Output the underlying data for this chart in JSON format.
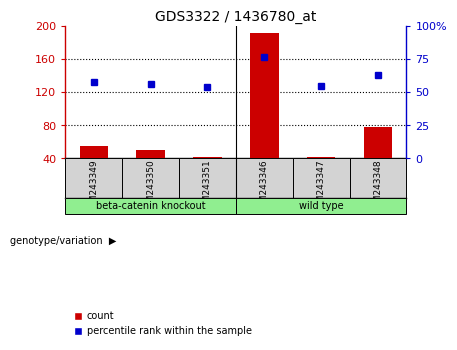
{
  "title": "GDS3322 / 1436780_at",
  "samples": [
    "GSM243349",
    "GSM243350",
    "GSM243351",
    "GSM243346",
    "GSM243347",
    "GSM243348"
  ],
  "counts": [
    55,
    50,
    42,
    192,
    42,
    78
  ],
  "percentile_ranks": [
    58,
    56,
    54,
    77,
    55,
    63
  ],
  "left_ylim": [
    40,
    200
  ],
  "right_ylim": [
    0,
    100
  ],
  "left_yticks": [
    40,
    80,
    120,
    160,
    200
  ],
  "right_yticks": [
    0,
    25,
    50,
    75,
    100
  ],
  "bar_color": "#cc0000",
  "dot_color": "#0000cc",
  "groups": [
    {
      "label": "beta-catenin knockout",
      "start": 0,
      "end": 3,
      "color": "#90ee90"
    },
    {
      "label": "wild type",
      "start": 3,
      "end": 6,
      "color": "#90ee90"
    }
  ],
  "group_label_prefix": "genotype/variation",
  "legend_count_label": "count",
  "legend_percentile_label": "percentile rank within the sample",
  "sample_box_color": "#d3d3d3",
  "left_axis_color": "#cc0000",
  "right_axis_color": "#0000cc",
  "dotted_grid_yvals": [
    80,
    120,
    160
  ]
}
